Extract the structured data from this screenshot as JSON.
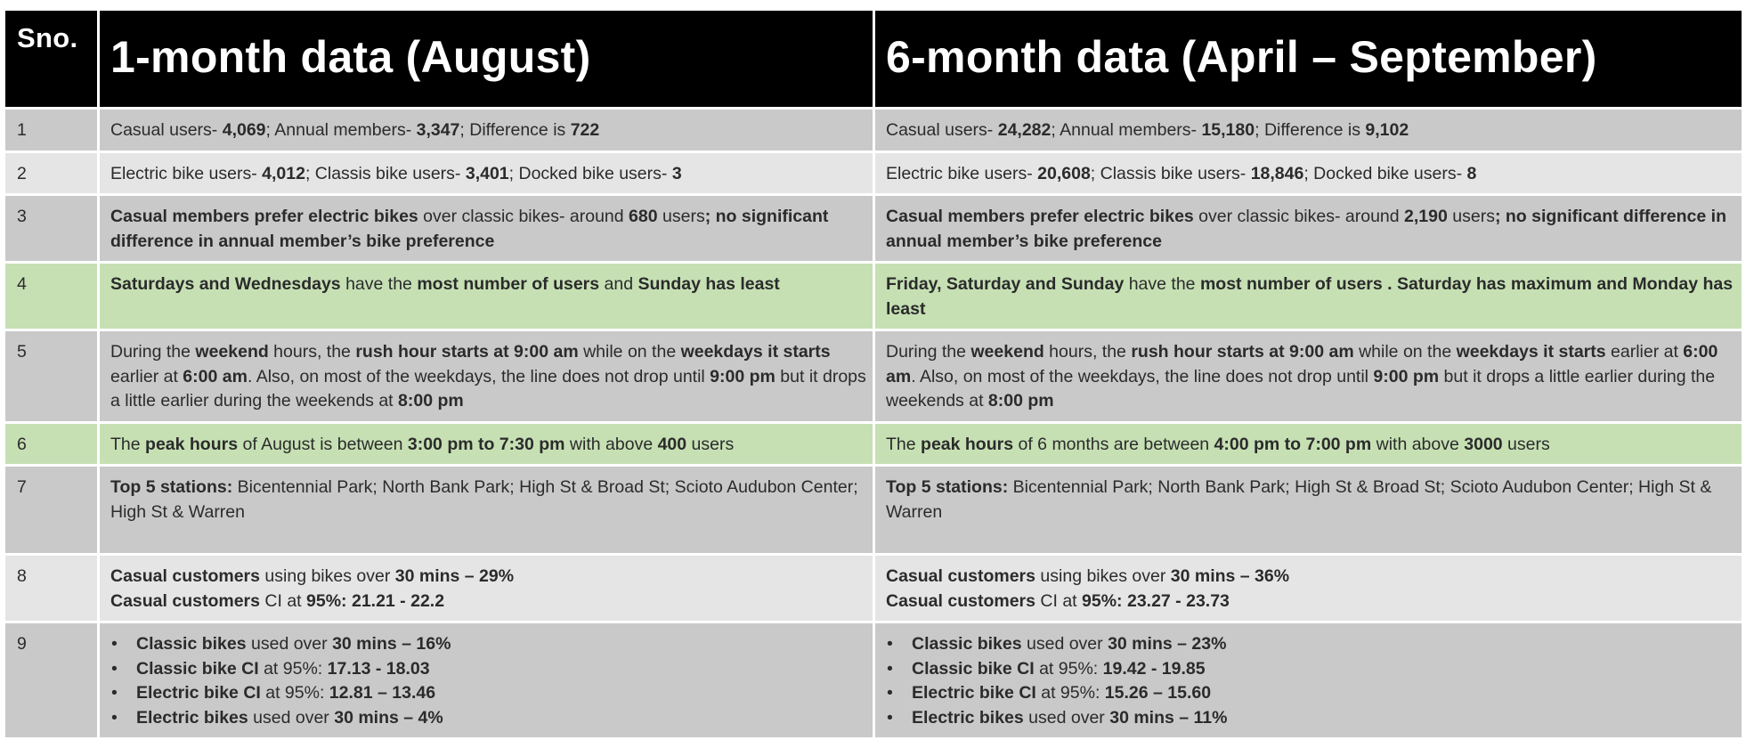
{
  "header": {
    "sno": "Sno.",
    "col_one_month": "1-month data (August)",
    "col_six_month": "6-month data (April – September)"
  },
  "rows": [
    {
      "sno": "1",
      "one": [
        {
          "t": "Casual users- ",
          "b": false
        },
        {
          "t": "4,069",
          "b": true
        },
        {
          "t": "; Annual members- ",
          "b": false
        },
        {
          "t": "3,347",
          "b": true
        },
        {
          "t": "; Difference is ",
          "b": false
        },
        {
          "t": "722",
          "b": true
        }
      ],
      "six": [
        {
          "t": "Casual users- ",
          "b": false
        },
        {
          "t": "24,282",
          "b": true
        },
        {
          "t": "; Annual members- ",
          "b": false
        },
        {
          "t": "15,180",
          "b": true
        },
        {
          "t": "; Difference is ",
          "b": false
        },
        {
          "t": "9,102",
          "b": true
        }
      ]
    },
    {
      "sno": "2",
      "one": [
        {
          "t": "Electric bike users- ",
          "b": false
        },
        {
          "t": "4,012",
          "b": true
        },
        {
          "t": "; Classis bike users- ",
          "b": false
        },
        {
          "t": "3,401",
          "b": true
        },
        {
          "t": "; Docked bike users- ",
          "b": false
        },
        {
          "t": "3",
          "b": true
        }
      ],
      "six": [
        {
          "t": "Electric bike users- ",
          "b": false
        },
        {
          "t": "20,608",
          "b": true
        },
        {
          "t": "; Classis bike users- ",
          "b": false
        },
        {
          "t": "18,846",
          "b": true
        },
        {
          "t": "; Docked bike users- ",
          "b": false
        },
        {
          "t": "8",
          "b": true
        }
      ]
    },
    {
      "sno": "3",
      "one": [
        {
          "t": "Casual members prefer electric bikes",
          "b": true
        },
        {
          "t": " over classic bikes- around ",
          "b": false
        },
        {
          "t": "680",
          "b": true
        },
        {
          "t": " users",
          "b": false
        },
        {
          "t": "; no significant difference in annual member’s bike preference",
          "b": true
        }
      ],
      "six": [
        {
          "t": "Casual members prefer electric bikes",
          "b": true
        },
        {
          "t": " over classic bikes- around ",
          "b": false
        },
        {
          "t": "2,190",
          "b": true
        },
        {
          "t": " users",
          "b": false
        },
        {
          "t": "; no significant difference in annual member’s bike preference",
          "b": true
        }
      ]
    },
    {
      "sno": "4",
      "one": [
        {
          "t": "Saturdays and Wednesdays",
          "b": true
        },
        {
          "t": " have the ",
          "b": false
        },
        {
          "t": "most number of users",
          "b": true
        },
        {
          "t": " and ",
          "b": false
        },
        {
          "t": "Sunday has least",
          "b": true
        }
      ],
      "six": [
        {
          "t": "Friday, Saturday and Sunday",
          "b": true
        },
        {
          "t": " have the ",
          "b": false
        },
        {
          "t": "most number of users . Saturday has maximum and Monday has least",
          "b": true
        }
      ]
    },
    {
      "sno": "5",
      "one": [
        {
          "t": "During the ",
          "b": false
        },
        {
          "t": "weekend",
          "b": true
        },
        {
          "t": " hours, the ",
          "b": false
        },
        {
          "t": "rush hour starts at 9:00 am",
          "b": true
        },
        {
          "t": " while on the ",
          "b": false
        },
        {
          "t": "weekdays it starts",
          "b": true
        },
        {
          "t": " earlier at ",
          "b": false
        },
        {
          "t": "6:00 am",
          "b": true
        },
        {
          "t": ". Also, on most of the weekdays, the line does not drop until ",
          "b": false
        },
        {
          "t": "9:00 pm",
          "b": true
        },
        {
          "t": " but it drops a little earlier during the weekends at ",
          "b": false
        },
        {
          "t": "8:00 pm",
          "b": true
        }
      ],
      "six": [
        {
          "t": "During the ",
          "b": false
        },
        {
          "t": "weekend",
          "b": true
        },
        {
          "t": " hours, the ",
          "b": false
        },
        {
          "t": "rush hour starts at 9:00 am",
          "b": true
        },
        {
          "t": " while on the ",
          "b": false
        },
        {
          "t": "weekdays it starts",
          "b": true
        },
        {
          "t": " earlier at ",
          "b": false
        },
        {
          "t": "6:00 am",
          "b": true
        },
        {
          "t": ". Also, on most of the weekdays, the line does not drop until ",
          "b": false
        },
        {
          "t": "9:00 pm",
          "b": true
        },
        {
          "t": " but it drops a little earlier during the weekends at ",
          "b": false
        },
        {
          "t": "8:00 pm",
          "b": true
        }
      ]
    },
    {
      "sno": "6",
      "one": [
        {
          "t": "The ",
          "b": false
        },
        {
          "t": "peak hours",
          "b": true
        },
        {
          "t": " of August is between ",
          "b": false
        },
        {
          "t": "3:00 pm to 7:30 pm",
          "b": true
        },
        {
          "t": " with above ",
          "b": false
        },
        {
          "t": "400",
          "b": true
        },
        {
          "t": " users",
          "b": false
        }
      ],
      "six": [
        {
          "t": "The ",
          "b": false
        },
        {
          "t": "peak hours",
          "b": true
        },
        {
          "t": " of 6 months are between ",
          "b": false
        },
        {
          "t": "4:00 pm to 7:00 pm",
          "b": true
        },
        {
          "t": " with above ",
          "b": false
        },
        {
          "t": "3000",
          "b": true
        },
        {
          "t": " users",
          "b": false
        }
      ]
    },
    {
      "sno": "7",
      "one": [
        {
          "t": "Top 5 stations:",
          "b": true
        },
        {
          "t": " Bicentennial Park; North Bank Park; High St & Broad St; Scioto Audubon Center; High St & Warren",
          "b": false
        }
      ],
      "six": [
        {
          "t": "Top 5 stations:",
          "b": true
        },
        {
          "t": " Bicentennial Park; North Bank Park; High St & Broad St; Scioto Audubon Center; High St & Warren",
          "b": false
        }
      ]
    }
  ],
  "row8": {
    "sno": "8",
    "one": [
      [
        {
          "t": "Casual customers",
          "b": true
        },
        {
          "t": " using bikes over ",
          "b": false
        },
        {
          "t": "30 mins – 29%",
          "b": true
        }
      ],
      [
        {
          "t": "Casual customers",
          "b": true
        },
        {
          "t": " CI at ",
          "b": false
        },
        {
          "t": "95%: 21.21 - 22.2",
          "b": true
        }
      ]
    ],
    "six": [
      [
        {
          "t": "Casual customers",
          "b": true
        },
        {
          "t": " using bikes over ",
          "b": false
        },
        {
          "t": "30 mins – 36%",
          "b": true
        }
      ],
      [
        {
          "t": "Casual customers",
          "b": true
        },
        {
          "t": " CI at ",
          "b": false
        },
        {
          "t": "95%: 23.27 - 23.73",
          "b": true
        }
      ]
    ]
  },
  "row9": {
    "sno": "9",
    "bullet": "•",
    "one": [
      [
        {
          "t": "Classic bikes",
          "b": true
        },
        {
          "t": " used over ",
          "b": false
        },
        {
          "t": "30 mins – 16%",
          "b": true
        }
      ],
      [
        {
          "t": "Classic bike CI",
          "b": true
        },
        {
          "t": " at 95%: ",
          "b": false
        },
        {
          "t": "17.13 - 18.03",
          "b": true
        }
      ],
      [
        {
          "t": "Electric bike CI",
          "b": true
        },
        {
          "t": " at 95%: ",
          "b": false
        },
        {
          "t": "12.81 – 13.46",
          "b": true
        }
      ],
      [
        {
          "t": "Electric bikes",
          "b": true
        },
        {
          "t": " used over ",
          "b": false
        },
        {
          "t": "30 mins – 4%",
          "b": true
        }
      ]
    ],
    "six": [
      [
        {
          "t": "Classic bikes",
          "b": true
        },
        {
          "t": " used over ",
          "b": false
        },
        {
          "t": "30 mins – 23%",
          "b": true
        }
      ],
      [
        {
          "t": "Classic bike CI",
          "b": true
        },
        {
          "t": " at 95%: ",
          "b": false
        },
        {
          "t": "19.42 - 19.85",
          "b": true
        }
      ],
      [
        {
          "t": "Electric bike CI",
          "b": true
        },
        {
          "t": " at 95%: ",
          "b": false
        },
        {
          "t": "15.26 – 15.60",
          "b": true
        }
      ],
      [
        {
          "t": "Electric bikes",
          "b": true
        },
        {
          "t": " used over ",
          "b": false
        },
        {
          "t": "30 mins – 11%",
          "b": true
        }
      ]
    ]
  },
  "colors": {
    "header_bg": "#000000",
    "row_dark": "#c9c9c9",
    "row_light": "#e5e5e5",
    "row_highlight": "#c6e0b4",
    "text": "#2b2b2b"
  }
}
